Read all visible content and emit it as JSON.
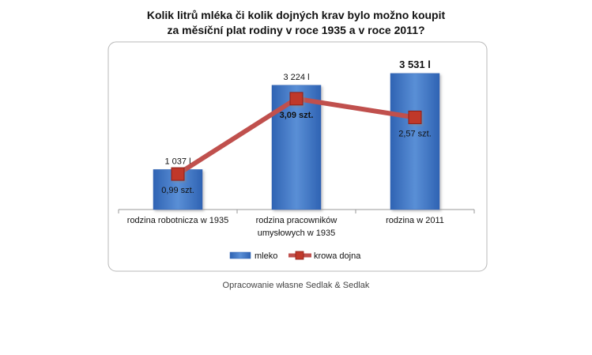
{
  "title_lines": [
    "Kolik litrů mléka či kolik dojných krav bylo možno koupit",
    "za měsíční plat rodiny v roce 1935 a v roce 2011?"
  ],
  "source": "Opracowanie własne Sedlak & Sedlak",
  "colors": {
    "bar_top": "#5a8fd6",
    "bar_bottom": "#2f63b3",
    "line": "#c0504d",
    "marker": "#c0392b"
  },
  "chart_data": {
    "type": "bar",
    "categories": [
      [
        "rodzina robotnicza  w 1935"
      ],
      [
        "rodzina pracowników",
        "umysłowych w 1935"
      ],
      [
        "rodzina w 2011"
      ]
    ],
    "series": [
      {
        "name": "mleko",
        "type": "bar",
        "values": [
          1037,
          3224,
          3531
        ],
        "labels": [
          "1 037 l",
          "3 224 l",
          "3 531  l"
        ],
        "label_bold": [
          false,
          false,
          true
        ]
      },
      {
        "name": "krowa dojna",
        "type": "line",
        "values": [
          0.99,
          3.09,
          2.57
        ],
        "labels": [
          "0,99 szt.",
          "3,09 szt.",
          "2,57 szt."
        ],
        "label_bold": [
          false,
          true,
          false
        ]
      }
    ],
    "ylim": [
      0,
      4000
    ],
    "y2lim": [
      0,
      4.3
    ],
    "legend_position": "bottom"
  }
}
